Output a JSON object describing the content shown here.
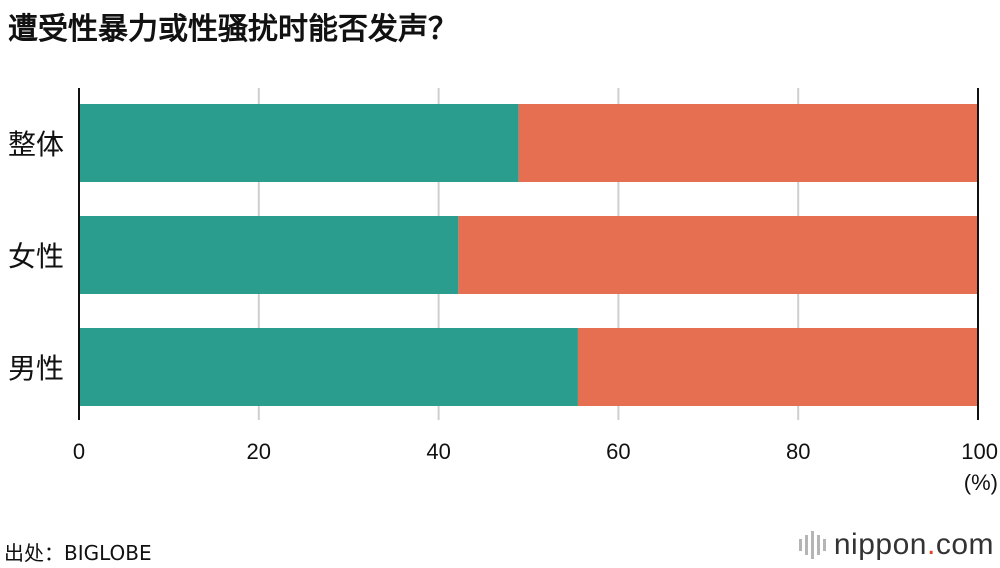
{
  "title": "遭受性暴力或性骚扰时能否发声？",
  "source": "出处：BIGLOBE",
  "logo": {
    "main": "nippon",
    "dot": ".",
    "suffix": "com"
  },
  "chart_data": {
    "type": "bar",
    "orientation": "horizontal",
    "stacked": true,
    "percent_stacked": true,
    "categories": [
      "整体",
      "女性",
      "男性"
    ],
    "series": [
      {
        "values": [
          48.9,
          42.2,
          55.5
        ],
        "color": "#2a9d8f"
      },
      {
        "values": [
          51.1,
          57.8,
          44.5
        ],
        "color": "#e76f51"
      }
    ],
    "xlim": [
      0,
      100
    ],
    "xticks": [
      "0",
      "20",
      "40",
      "60",
      "80",
      "100"
    ],
    "xunit": "(%)",
    "grid": true
  }
}
